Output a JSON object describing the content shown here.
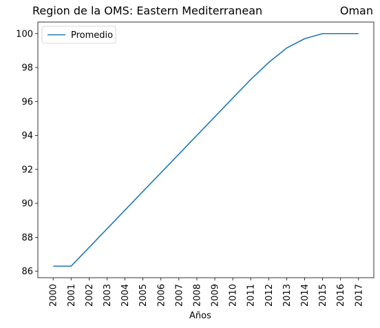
{
  "chart_data": {
    "type": "line",
    "title": "Region de la OMS: Eastern Mediterranean",
    "subtitle": "Oman",
    "xlabel": "Años",
    "ylabel": "",
    "x": [
      2000,
      2001,
      2002,
      2003,
      2004,
      2005,
      2006,
      2007,
      2008,
      2009,
      2010,
      2011,
      2012,
      2013,
      2014,
      2015,
      2016,
      2017
    ],
    "x_tick_labels": [
      "2000",
      "2001",
      "2002",
      "2003",
      "2004",
      "2005",
      "2006",
      "2007",
      "2008",
      "2009",
      "2010",
      "2011",
      "2012",
      "2013",
      "2014",
      "2015",
      "2016",
      "2017"
    ],
    "series": [
      {
        "name": "Promedio",
        "color": "#1f77b4",
        "values": [
          86.3,
          86.3,
          87.4,
          88.5,
          89.6,
          90.7,
          91.8,
          92.9,
          94.0,
          95.1,
          96.2,
          97.3,
          98.3,
          99.15,
          99.7,
          100.0,
          100.0,
          100.0
        ]
      }
    ],
    "ylim": [
      85.62,
      100.68
    ],
    "y_ticks": [
      86,
      88,
      90,
      92,
      94,
      96,
      98,
      100
    ],
    "grid": false,
    "legend_position": "upper left"
  }
}
